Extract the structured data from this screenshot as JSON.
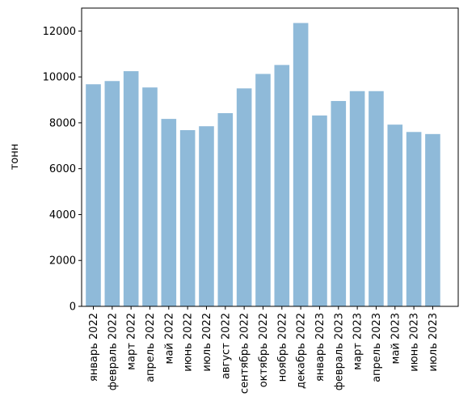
{
  "chart_data": {
    "type": "bar",
    "title": "",
    "xlabel": "",
    "ylabel": "тонн",
    "ylim": [
      0,
      13000
    ],
    "yticks": [
      0,
      2000,
      4000,
      6000,
      8000,
      10000,
      12000
    ],
    "grid": false,
    "bar_color": "#8fbad9",
    "categories": [
      "январь 2022",
      "февраль 2022",
      "март 2022",
      "апрель 2022",
      "май 2022",
      "июнь 2022",
      "июль 2022",
      "август 2022",
      "сентябрь 2022",
      "октябрь 2022",
      "ноябрь 2022",
      "декабрь 2022",
      "январь 2023",
      "февраль 2023",
      "март 2023",
      "апрель 2023",
      "май 2023",
      "июнь 2023",
      "июль 2023"
    ],
    "values": [
      9680,
      9820,
      10250,
      9540,
      8170,
      7680,
      7850,
      8420,
      9500,
      10130,
      10520,
      12350,
      8320,
      8950,
      9380,
      9380,
      7920,
      7600,
      7510
    ]
  }
}
